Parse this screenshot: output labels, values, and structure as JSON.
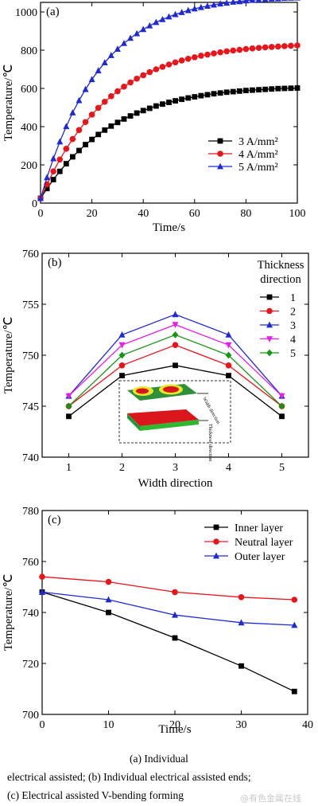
{
  "chart_data": [
    {
      "type": "line",
      "panel_label": "(a)",
      "xlabel": "Time/s",
      "ylabel": "Temperature/℃",
      "xlim": [
        0,
        100
      ],
      "ylim": [
        0,
        1050
      ],
      "xticks": [
        0,
        20,
        40,
        60,
        80,
        100
      ],
      "yticks": [
        0,
        200,
        400,
        600,
        800,
        1000
      ],
      "legend_position": "bottom-right",
      "series": [
        {
          "name": "3 A/mm²",
          "marker": "square",
          "color": "#000000",
          "x": [
            0,
            2.5,
            5,
            7.5,
            10,
            12.5,
            15,
            17.5,
            20,
            22.5,
            25,
            27.5,
            30,
            32.5,
            35,
            37.5,
            40,
            42.5,
            45,
            47.5,
            50,
            52.5,
            55,
            57.5,
            60,
            62.5,
            65,
            67.5,
            70,
            72.5,
            75,
            77.5,
            80,
            82.5,
            85,
            87.5,
            90,
            92.5,
            95,
            97.5,
            100
          ],
          "y": [
            25,
            76,
            123,
            166,
            206,
            242,
            275,
            306,
            333,
            359,
            382,
            403,
            422,
            440,
            456,
            471,
            484,
            496,
            508,
            518,
            527,
            535,
            543,
            550,
            556,
            562,
            567,
            572,
            576,
            580,
            583,
            586,
            589,
            591,
            593,
            595,
            597,
            599,
            600,
            601,
            602
          ]
        },
        {
          "name": "4 A/mm²",
          "marker": "circle",
          "color": "#e8151b",
          "x": [
            0,
            2.5,
            5,
            7.5,
            10,
            12.5,
            15,
            17.5,
            20,
            22.5,
            25,
            27.5,
            30,
            32.5,
            35,
            37.5,
            40,
            42.5,
            45,
            47.5,
            50,
            52.5,
            55,
            57.5,
            60,
            62.5,
            65,
            67.5,
            70,
            72.5,
            75,
            77.5,
            80,
            82.5,
            85,
            87.5,
            90,
            92.5,
            95,
            97.5,
            100
          ],
          "y": [
            25,
            98,
            166,
            228,
            284,
            335,
            382,
            424,
            463,
            498,
            530,
            559,
            585,
            609,
            631,
            651,
            669,
            685,
            700,
            713,
            725,
            736,
            746,
            755,
            763,
            771,
            777,
            783,
            789,
            794,
            798,
            802,
            806,
            809,
            812,
            815,
            817,
            819,
            821,
            823,
            825
          ]
        },
        {
          "name": "5 A/mm²",
          "marker": "triangle",
          "color": "#1f2ad6",
          "x": [
            0,
            2.5,
            5,
            7.5,
            10,
            12.5,
            15,
            17.5,
            20,
            22.5,
            25,
            27.5,
            30,
            32.5,
            35,
            37.5,
            40,
            42.5,
            45,
            47.5,
            50,
            52.5,
            55,
            57.5,
            60,
            62.5,
            65,
            67.5,
            70,
            72.5,
            75,
            77.5,
            80,
            82.5,
            85,
            87.5,
            90,
            92.5,
            95,
            97.5,
            100
          ],
          "y": [
            25,
            134,
            233,
            321,
            401,
            473,
            537,
            595,
            647,
            693,
            735,
            773,
            806,
            836,
            863,
            887,
            909,
            928,
            946,
            961,
            975,
            987,
            998,
            1008,
            1017,
            1024,
            1031,
            1037,
            1043,
            1047,
            1052,
            1055,
            1059,
            1062,
            1064,
            1067,
            1069,
            1070,
            1072,
            1073,
            1074
          ]
        }
      ]
    },
    {
      "type": "line",
      "panel_label": "(b)",
      "xlabel": "Width direction",
      "ylabel": "Temperature/℃",
      "xlim": [
        0.5,
        5.5
      ],
      "ylim": [
        740,
        760
      ],
      "xticks": [
        1,
        2,
        3,
        4,
        5
      ],
      "yticks": [
        740,
        745,
        750,
        755,
        760
      ],
      "legend_title": "Thickness direction",
      "legend_position": "top-right",
      "inset": {
        "labels": [
          "Width direction",
          "Thickness direction"
        ]
      },
      "categories": [
        1,
        2,
        3,
        4,
        5
      ],
      "series": [
        {
          "name": "1",
          "marker": "square",
          "color": "#000000",
          "values": [
            744,
            748,
            749,
            748,
            744
          ]
        },
        {
          "name": "2",
          "marker": "circle",
          "color": "#e8151b",
          "values": [
            745,
            749,
            751,
            749,
            745
          ]
        },
        {
          "name": "3",
          "marker": "triangle",
          "color": "#1f2ad6",
          "values": [
            746,
            752,
            754,
            752,
            746
          ]
        },
        {
          "name": "4",
          "marker": "triangle-down",
          "color": "#e61ee6",
          "values": [
            746,
            751,
            753,
            751,
            746
          ]
        },
        {
          "name": "5",
          "marker": "diamond",
          "color": "#149614",
          "values": [
            745,
            750,
            752,
            750,
            745
          ]
        }
      ]
    },
    {
      "type": "line",
      "panel_label": "(c)",
      "xlabel": "Time/s",
      "ylabel": "Temperature/℃",
      "xlim": [
        0,
        40
      ],
      "ylim": [
        700,
        780
      ],
      "xticks": [
        0,
        10,
        20,
        30,
        40
      ],
      "yticks": [
        700,
        720,
        740,
        760,
        780
      ],
      "legend_position": "top-right",
      "series": [
        {
          "name": "Inner layer",
          "marker": "square",
          "color": "#000000",
          "x": [
            0,
            10,
            20,
            30,
            38
          ],
          "y": [
            748,
            740,
            730,
            719,
            709
          ]
        },
        {
          "name": "Neutral layer",
          "marker": "circle",
          "color": "#e8151b",
          "x": [
            0,
            10,
            20,
            30,
            38
          ],
          "y": [
            754,
            752,
            748,
            746,
            745
          ]
        },
        {
          "name": "Outer layer",
          "marker": "triangle",
          "color": "#1f2ad6",
          "x": [
            0,
            10,
            20,
            30,
            38
          ],
          "y": [
            748,
            745,
            739,
            736,
            735
          ]
        }
      ]
    }
  ],
  "caption": {
    "line1": "(a) Individual",
    "line2": "electrical assisted; (b) Individual  electrical assisted ends;",
    "line3": "(c) Electrical assisted V-bending forming"
  },
  "watermark": "@有色金属在线"
}
